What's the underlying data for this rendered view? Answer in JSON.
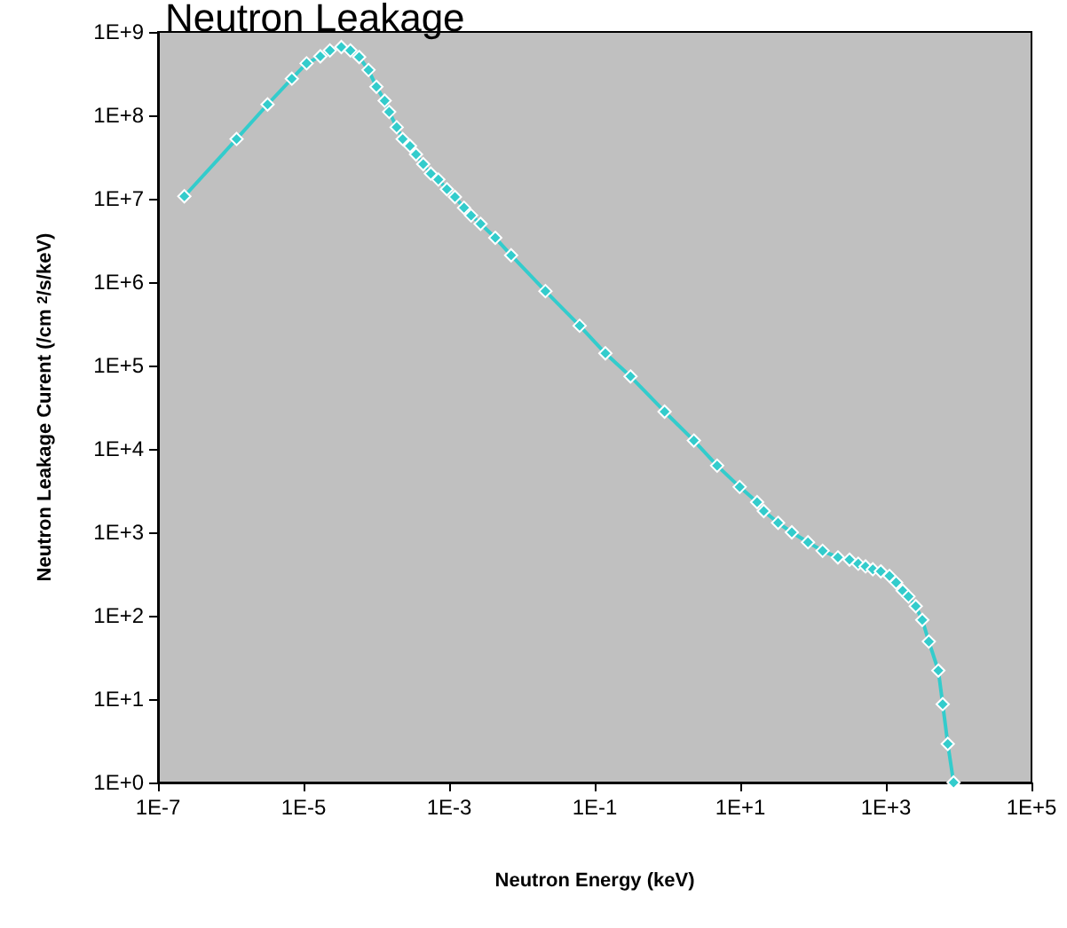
{
  "chart_data": {
    "type": "line",
    "title": "Neutron Leakage",
    "xlabel": "Neutron Energy (keV)",
    "ylabel": "Neutron Leakage Curent (/cm $^{2}$/s/keV)",
    "log": "xy",
    "grid": false,
    "marker": "diamond",
    "line_style": "solid",
    "xlim": [
      1e-07,
      100000.0
    ],
    "ylim": [
      1,
      1000000000.0
    ],
    "xticks": [
      {
        "value": 1e-07,
        "label": "1E-7"
      },
      {
        "value": 1e-05,
        "label": "1E-5"
      },
      {
        "value": 0.001,
        "label": "1E-3"
      },
      {
        "value": 0.1,
        "label": "1E-1"
      },
      {
        "value": 10,
        "label": "1E+1"
      },
      {
        "value": 1000,
        "label": "1E+3"
      },
      {
        "value": 100000.0,
        "label": "1E+5"
      }
    ],
    "yticks": [
      {
        "value": 1,
        "label": "1E+0"
      },
      {
        "value": 10,
        "label": "1E+1"
      },
      {
        "value": 100,
        "label": "1E+2"
      },
      {
        "value": 1000,
        "label": "1E+3"
      },
      {
        "value": 10000.0,
        "label": "1E+4"
      },
      {
        "value": 100000.0,
        "label": "1E+5"
      },
      {
        "value": 1000000.0,
        "label": "1E+6"
      },
      {
        "value": 10000000.0,
        "label": "1E+7"
      },
      {
        "value": 100000000.0,
        "label": "1E+8"
      },
      {
        "value": 1000000000.0,
        "label": "1E+9"
      }
    ],
    "x": [
      2.3e-07,
      1.2e-06,
      3.2e-06,
      6.9e-06,
      1.1e-05,
      1.7e-05,
      2.3e-05,
      3.3e-05,
      4.4e-05,
      5.8e-05,
      7.8e-05,
      0.0001,
      0.00013,
      0.00015,
      0.00019,
      0.00023,
      0.00029,
      0.00035,
      0.00044,
      0.00056,
      0.00071,
      0.00093,
      0.0012,
      0.0016,
      0.002,
      0.0027,
      0.0043,
      0.0071,
      0.021,
      0.062,
      0.14,
      0.31,
      0.91,
      2.3,
      4.8,
      9.8,
      17,
      21,
      33,
      51,
      85,
      135,
      219,
      316,
      417,
      525,
      661,
      851,
      1120,
      1380,
      1700,
      2040,
      2570,
      3160,
      3890,
      5250,
      6030,
      7080,
      8510
    ],
    "series": [
      {
        "color": "#33cccc",
        "values": [
          10700000.0,
          52000000.0,
          135000000.0,
          275000000.0,
          420000000.0,
          510000000.0,
          600000000.0,
          660000000.0,
          600000000.0,
          500000000.0,
          350000000.0,
          220000000.0,
          150000000.0,
          110000000.0,
          72000000.0,
          52000000.0,
          43000000.0,
          34000000.0,
          26000000.0,
          20000000.0,
          17000000.0,
          13000000.0,
          10500000.0,
          7800000.0,
          6300000.0,
          5000000.0,
          3400000.0,
          2100000.0,
          780000.0,
          300000.0,
          140000.0,
          74000.0,
          28000.0,
          12600.0,
          6300,
          3500,
          2300,
          1800,
          1300,
          1000,
          760,
          600,
          500,
          470,
          420,
          390,
          360,
          340,
          300,
          250,
          200,
          170,
          130,
          89,
          49,
          22,
          8.7,
          2.9,
          1
        ]
      }
    ]
  }
}
